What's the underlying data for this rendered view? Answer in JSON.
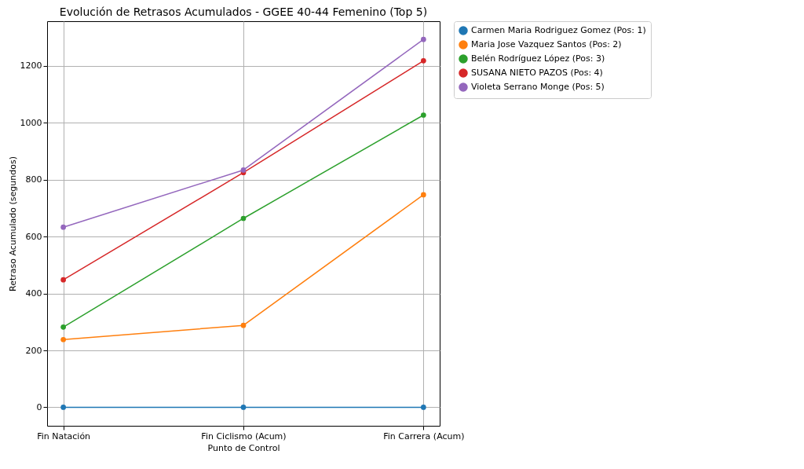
{
  "chart_data": {
    "type": "line",
    "title": "Evolución de Retrasos Acumulados - GGEE 40-44 Femenino (Top 5)",
    "xlabel": "Punto de Control",
    "ylabel": "Retraso Acumulado (segundos)",
    "categories": [
      "Fin Natación",
      "Fin Ciclismo (Acum)",
      "Fin Carrera (Acum)"
    ],
    "series": [
      {
        "name": "Carmen Maria Rodriguez Gomez (Pos: 1)",
        "color": "#1f77b4",
        "values": [
          0,
          0,
          0
        ]
      },
      {
        "name": "Maria Jose Vazquez Santos (Pos: 2)",
        "color": "#ff7f0e",
        "values": [
          238,
          288,
          747
        ]
      },
      {
        "name": "Belén Rodríguez López (Pos: 3)",
        "color": "#2ca02c",
        "values": [
          282,
          664,
          1027
        ]
      },
      {
        "name": "SUSANA NIETO PAZOS (Pos: 4)",
        "color": "#d62728",
        "values": [
          448,
          825,
          1218
        ]
      },
      {
        "name": "Violeta Serrano Monge (Pos: 5)",
        "color": "#9467bd",
        "values": [
          633,
          834,
          1293
        ]
      }
    ],
    "ylim": [
      -65,
      1357
    ],
    "yticks": [
      0,
      200,
      400,
      600,
      800,
      1000,
      1200
    ],
    "grid": true,
    "legend": "right",
    "marker": "circle",
    "line_style": "solid"
  }
}
